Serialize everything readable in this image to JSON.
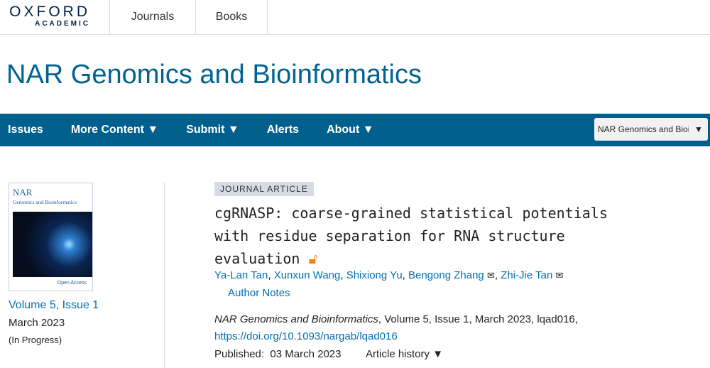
{
  "header": {
    "logo_main": "OXFORD",
    "logo_sub": "ACADEMIC",
    "tabs": [
      "Journals",
      "Books"
    ]
  },
  "journal_title": "NAR Genomics and Bioinformatics",
  "nav": {
    "items": [
      "Issues",
      "More Content ▼",
      "Submit ▼",
      "Alerts",
      "About ▼"
    ],
    "search_scope": "NAR Genomics and Bioinformatics",
    "scope_arrow": "▼"
  },
  "issue": {
    "cover_title": "NAR",
    "cover_subtitle": "Genomics and Bioinformatics",
    "cover_footer": "Open Access",
    "volume_link": "Volume 5, Issue 1",
    "date": "March 2023",
    "status": "(In Progress)"
  },
  "article": {
    "type": "JOURNAL ARTICLE",
    "title": "cgRNASP: coarse-grained statistical potentials with residue separation for RNA structure evaluation",
    "open_access_icon": "open-access-lock",
    "authors": [
      {
        "name": "Ya-Lan Tan",
        "email": false
      },
      {
        "name": "Xunxun Wang",
        "email": false
      },
      {
        "name": "Shixiong Yu",
        "email": false
      },
      {
        "name": "Bengong Zhang",
        "email": true
      },
      {
        "name": "Zhi-Jie Tan",
        "email": true
      }
    ],
    "author_notes": "Author Notes",
    "citation_journal": "NAR Genomics and Bioinformatics",
    "citation_rest": ", Volume 5, Issue 1, March 2023, lqad016,",
    "doi": "https://doi.org/10.1093/nargab/lqad016",
    "published_label": "Published:",
    "published_date": "03 March 2023",
    "history": "Article history ▼"
  },
  "colors": {
    "brand": "#006391",
    "nav": "#005f8c",
    "link": "#006fb3",
    "oa": "#f68212"
  }
}
